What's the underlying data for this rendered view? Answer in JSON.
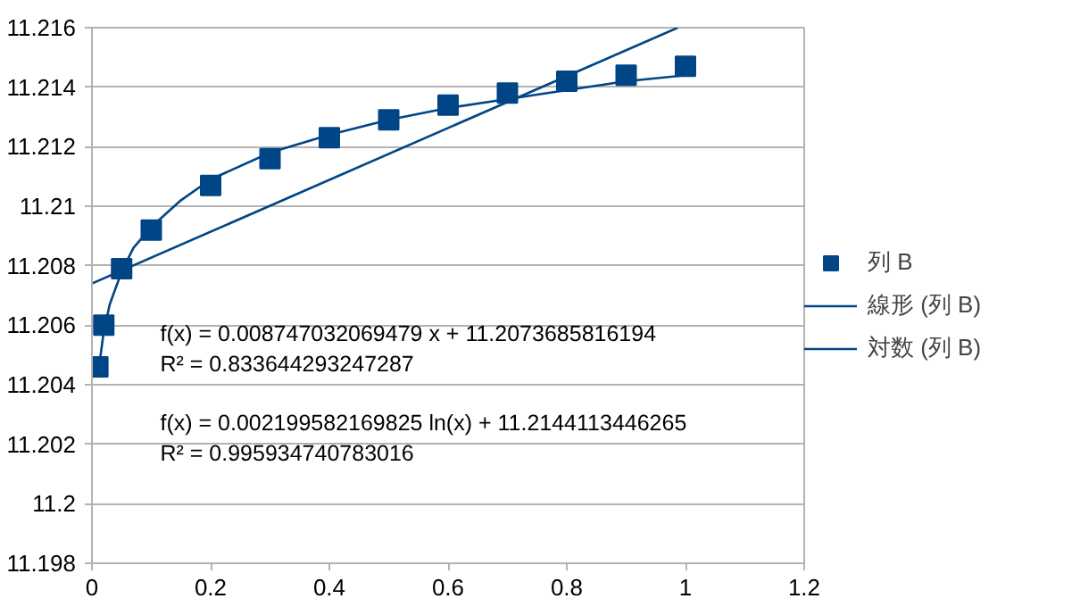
{
  "chart_data": {
    "type": "scatter",
    "xlim": [
      0,
      1.2
    ],
    "xticks": [
      0,
      0.2,
      0.4,
      0.6,
      0.8,
      1,
      1.2
    ],
    "ylim": [
      11.198,
      11.216
    ],
    "yticks": [
      11.198,
      11.2,
      11.202,
      11.204,
      11.206,
      11.208,
      11.21,
      11.212,
      11.214,
      11.216
    ],
    "grid": "y",
    "legend": "right",
    "series": [
      {
        "name": "列 B",
        "marker": "square",
        "color": "#004586",
        "x": [
          0.01,
          0.02,
          0.05,
          0.1,
          0.2,
          0.3,
          0.4,
          0.5,
          0.6,
          0.7,
          0.8,
          0.9,
          1
        ],
        "values": [
          11.2046,
          11.206,
          11.2079,
          11.2092,
          11.2107,
          11.2116,
          11.2123,
          11.2129,
          11.2134,
          11.2138,
          11.2142,
          11.2144,
          11.2147
        ]
      },
      {
        "name": "線形 (列 B)",
        "type": "line",
        "color": "#004586",
        "x": [
          0,
          0.987
        ],
        "values": [
          11.2074,
          11.216
        ]
      },
      {
        "name": "対数 (列 B)",
        "type": "line",
        "color": "#004586",
        "x": [
          0.01,
          0.02,
          0.03,
          0.05,
          0.07,
          0.1,
          0.15,
          0.2,
          0.3,
          0.4,
          0.5,
          0.6,
          0.7,
          0.8,
          0.9,
          1
        ],
        "values": [
          11.2043,
          11.2058,
          11.2067,
          11.2078,
          11.2086,
          11.2093,
          11.2102,
          11.2109,
          11.2118,
          11.2124,
          11.2129,
          11.2133,
          11.2136,
          11.2139,
          11.2142,
          11.2144
        ]
      }
    ],
    "annotations": [
      "f(x) = 0.008747032069479 x + 11.2073685816194",
      "R² = 0.833644293247287",
      "f(x) = 0.002199582169825 ln(x) + 11.2144113446265",
      "R² = 0.995934740783016"
    ]
  }
}
